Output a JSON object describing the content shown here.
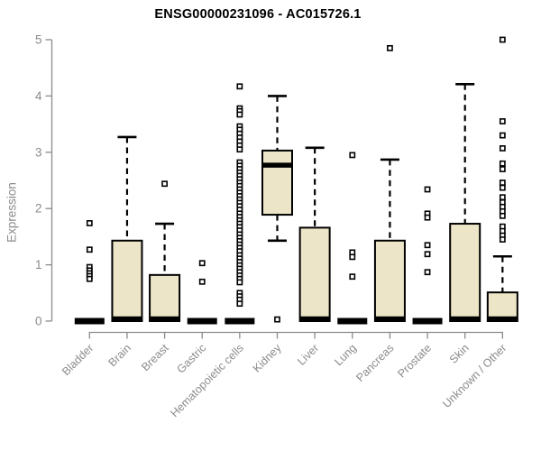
{
  "chart_data": {
    "type": "boxplot",
    "title": "ENSG00000231096 - AC015726.1",
    "ylabel": "Expression",
    "xlabel": "",
    "ylim": [
      0,
      5
    ],
    "yticks": [
      0,
      1,
      2,
      3,
      4,
      5
    ],
    "grid": false,
    "x_label_rotation": -45,
    "categories": [
      "Bladder",
      "Brain",
      "Breast",
      "Gastric",
      "Hematopoietic cells",
      "Kidney",
      "Liver",
      "Lung",
      "Pancreas",
      "Prostate",
      "Skin",
      "Unknown / Other"
    ],
    "series": [
      {
        "category": "Bladder",
        "whisker_low": 0,
        "q1": 0,
        "median": 0,
        "q3": 0,
        "whisker_high": 0,
        "outliers": [
          1.74,
          1.27,
          0.96,
          0.9,
          0.85,
          0.8,
          0.75
        ]
      },
      {
        "category": "Brain",
        "whisker_low": 0,
        "q1": 0,
        "median": 0,
        "q3": 1.43,
        "whisker_high": 3.27,
        "outliers": []
      },
      {
        "category": "Breast",
        "whisker_low": 0,
        "q1": 0,
        "median": 0,
        "q3": 0.82,
        "whisker_high": 1.73,
        "outliers": [
          2.44
        ]
      },
      {
        "category": "Gastric",
        "whisker_low": 0,
        "q1": 0,
        "median": 0,
        "q3": 0,
        "whisker_high": 0,
        "outliers": [
          1.03,
          0.7
        ]
      },
      {
        "category": "Hematopoietic cells",
        "whisker_low": 0,
        "q1": 0,
        "median": 0,
        "q3": 0,
        "whisker_high": 0,
        "outliers": [
          4.17,
          3.78,
          3.73,
          3.67,
          3.46,
          3.4,
          3.33,
          3.26,
          3.19,
          3.12,
          3.05,
          2.82,
          2.76,
          2.7,
          2.64,
          2.58,
          2.52,
          2.46,
          2.4,
          2.34,
          2.28,
          2.22,
          2.16,
          2.1,
          2.04,
          1.98,
          1.91,
          1.85,
          1.79,
          1.73,
          1.67,
          1.61,
          1.54,
          1.48,
          1.42,
          1.36,
          1.3,
          1.24,
          1.17,
          1.11,
          1.05,
          0.99,
          0.93,
          0.87,
          0.81,
          0.75,
          0.69,
          0.5,
          0.44,
          0.38,
          0.31
        ]
      },
      {
        "category": "Kidney",
        "whisker_low": 1.43,
        "q1": 1.89,
        "median": 2.77,
        "q3": 3.03,
        "whisker_high": 4.0,
        "outliers": [
          0.03
        ]
      },
      {
        "category": "Liver",
        "whisker_low": 0,
        "q1": 0,
        "median": 0,
        "q3": 1.66,
        "whisker_high": 3.08,
        "outliers": []
      },
      {
        "category": "Lung",
        "whisker_low": 0,
        "q1": 0,
        "median": 0,
        "q3": 0,
        "whisker_high": 0,
        "outliers": [
          2.95,
          1.22,
          1.14,
          0.79
        ]
      },
      {
        "category": "Pancreas",
        "whisker_low": 0,
        "q1": 0,
        "median": 0,
        "q3": 1.43,
        "whisker_high": 2.87,
        "outliers": [
          4.85
        ]
      },
      {
        "category": "Prostate",
        "whisker_low": 0,
        "q1": 0,
        "median": 0,
        "q3": 0,
        "whisker_high": 0,
        "outliers": [
          2.34,
          1.91,
          1.84,
          1.35,
          1.19,
          0.87
        ]
      },
      {
        "category": "Skin",
        "whisker_low": 0,
        "q1": 0,
        "median": 0,
        "q3": 1.73,
        "whisker_high": 4.21,
        "outliers": []
      },
      {
        "category": "Unknown / Other",
        "whisker_low": 0,
        "q1": 0,
        "median": 0,
        "q3": 0.51,
        "whisker_high": 1.15,
        "outliers": [
          5.0,
          3.55,
          3.3,
          3.07,
          2.8,
          2.7,
          2.46,
          2.37,
          2.2,
          2.11,
          2.03,
          1.95,
          1.87,
          1.68,
          1.6,
          1.52,
          1.45
        ]
      }
    ],
    "colors": {
      "box_fill": "#EDE5C7",
      "box_stroke": "#000000",
      "median": "#000000",
      "outlier_stroke": "#000000",
      "axis": "#8B8B8B",
      "title": "#000000",
      "background": "#FFFFFF"
    }
  }
}
